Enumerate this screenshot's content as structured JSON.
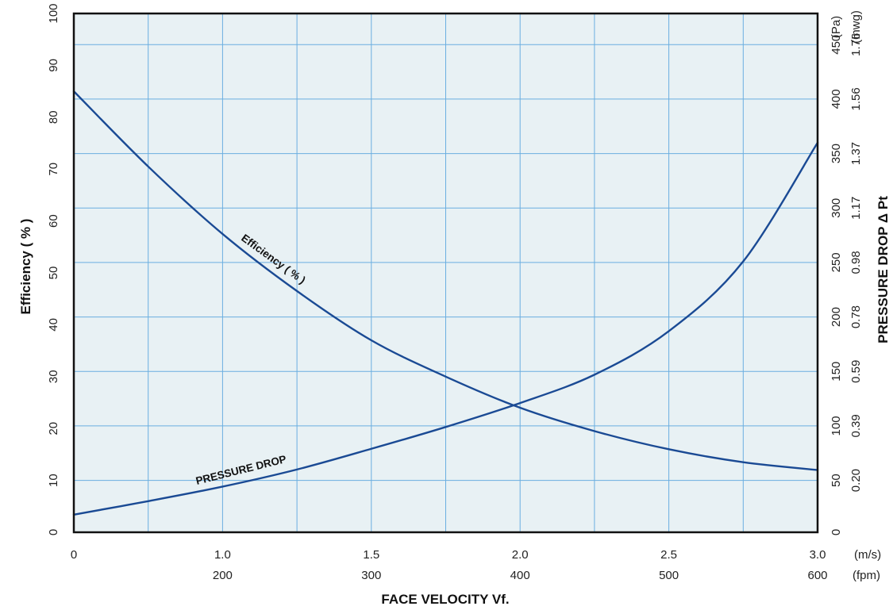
{
  "chart_data": {
    "type": "line",
    "xlabel": "FACE VELOCITY  Vf.",
    "ylabel_left": "Efficiency ( % )",
    "ylabel_right": "PRESSURE DROP  Δ Pt",
    "xlim": [
      0.5,
      3.0
    ],
    "ylim": [
      0,
      100
    ],
    "x_ticks_ms": [
      {
        "value": 0.5,
        "label": "0"
      },
      {
        "value": 1.0,
        "label": "1.0"
      },
      {
        "value": 1.5,
        "label": "1.5"
      },
      {
        "value": 2.0,
        "label": "2.0"
      },
      {
        "value": 2.5,
        "label": "2.5"
      },
      {
        "value": 3.0,
        "label": "3.0"
      }
    ],
    "x_unit_ms": "(m/s)",
    "x_ticks_fpm": [
      {
        "value": 1.0,
        "label": "200"
      },
      {
        "value": 1.5,
        "label": "300"
      },
      {
        "value": 2.0,
        "label": "400"
      },
      {
        "value": 2.5,
        "label": "500"
      },
      {
        "value": 3.0,
        "label": "600"
      }
    ],
    "x_unit_fpm": "(fpm)",
    "y_ticks_left": [
      {
        "value": 0,
        "label": "0"
      },
      {
        "value": 10,
        "label": "10"
      },
      {
        "value": 20,
        "label": "20"
      },
      {
        "value": 30,
        "label": "30"
      },
      {
        "value": 40,
        "label": "40"
      },
      {
        "value": 50,
        "label": "50"
      },
      {
        "value": 60,
        "label": "60"
      },
      {
        "value": 70,
        "label": "70"
      },
      {
        "value": 80,
        "label": "80"
      },
      {
        "value": 90,
        "label": "90"
      },
      {
        "value": 100,
        "label": "100"
      }
    ],
    "right_axis_pa": {
      "unit": "(Pa)",
      "ticks": [
        {
          "value": 0,
          "label": "0"
        },
        {
          "value": 50,
          "label": "50"
        },
        {
          "value": 100,
          "label": "100"
        },
        {
          "value": 150,
          "label": "150"
        },
        {
          "value": 200,
          "label": "200"
        },
        {
          "value": 250,
          "label": "250"
        },
        {
          "value": 300,
          "label": "300"
        },
        {
          "value": 350,
          "label": "350"
        },
        {
          "value": 400,
          "label": "400"
        },
        {
          "value": 450,
          "label": "450"
        }
      ]
    },
    "right_axis_inwg": {
      "unit": "(Inwg)",
      "ticks": [
        {
          "value": 50,
          "label": "0.20"
        },
        {
          "value": 100,
          "label": "0.39"
        },
        {
          "value": 150,
          "label": "0.59"
        },
        {
          "value": 200,
          "label": "0.78"
        },
        {
          "value": 250,
          "label": "0.98"
        },
        {
          "value": 300,
          "label": "1.17"
        },
        {
          "value": 350,
          "label": "1.37"
        },
        {
          "value": 400,
          "label": "1.56"
        },
        {
          "value": 450,
          "label": "1.76"
        }
      ]
    },
    "right_axis_gridline_pa": [
      50,
      100,
      150,
      200,
      250,
      300,
      350,
      400,
      450
    ],
    "x_gridlines": [
      0.75,
      1.0,
      1.25,
      1.5,
      1.75,
      2.0,
      2.25,
      2.5,
      2.75
    ],
    "series": [
      {
        "name": "Efficiency ( % )",
        "axis": "left",
        "color": "#1a4a94",
        "x": [
          0.5,
          0.75,
          1.0,
          1.25,
          1.5,
          1.75,
          2.0,
          2.25,
          2.5,
          2.75,
          3.0
        ],
        "y": [
          85,
          70.5,
          57.5,
          46.5,
          37,
          30,
          24,
          19.5,
          16,
          13.5,
          12
        ]
      },
      {
        "name": "PRESSURE DROP",
        "axis": "right_pa",
        "color": "#1a4a94",
        "x": [
          0.5,
          0.75,
          1.0,
          1.25,
          1.5,
          1.75,
          2.0,
          2.25,
          2.5,
          2.75,
          3.0
        ],
        "y": [
          17,
          30,
          44,
          60,
          79,
          99,
          121,
          147,
          187,
          251,
          360
        ]
      }
    ],
    "colors": {
      "background": "#e8f1f4",
      "grid": "#6aaee0",
      "frame": "#111111",
      "curve": "#1a4a94"
    },
    "annotations": [
      {
        "text": "Efficiency ( % )",
        "series": "Efficiency ( % )"
      },
      {
        "text": "PRESSURE DROP",
        "series": "PRESSURE DROP"
      }
    ]
  }
}
